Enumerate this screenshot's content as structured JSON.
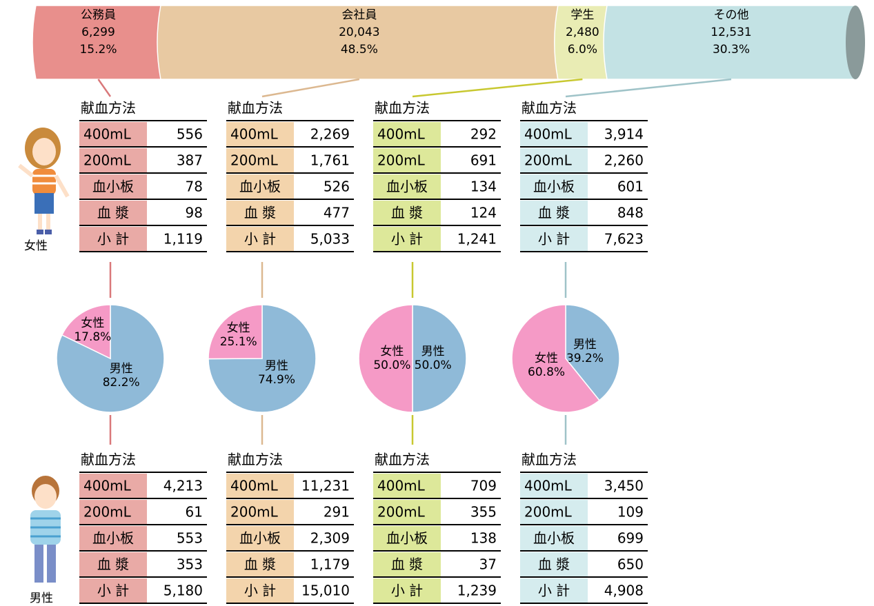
{
  "occupations": {
    "names": [
      "公務員",
      "会社員",
      "学生",
      "その他"
    ],
    "values": [
      6299,
      20043,
      2480,
      12531
    ],
    "value_labels": [
      "6,299",
      "20,043",
      "2,480",
      "12,531"
    ],
    "share_labels": [
      "15.2%",
      "48.5%",
      "6.0%",
      "30.3%"
    ],
    "colors": [
      "#e88f8c",
      "#e8c9a2",
      "#e9ecb4",
      "#c3e2e4"
    ]
  },
  "female": {
    "label": "女性",
    "tables": [
      {
        "title": "献血方法",
        "rows": [
          [
            "400mL",
            "556"
          ],
          [
            "200mL",
            "387"
          ],
          [
            "血小板",
            "78"
          ],
          [
            "血 漿",
            "98"
          ],
          [
            "小 計",
            "1,119"
          ]
        ]
      },
      {
        "title": "献血方法",
        "rows": [
          [
            "400mL",
            "2,269"
          ],
          [
            "200mL",
            "1,761"
          ],
          [
            "血小板",
            "526"
          ],
          [
            "血 漿",
            "477"
          ],
          [
            "小 計",
            "5,033"
          ]
        ]
      },
      {
        "title": "献血方法",
        "rows": [
          [
            "400mL",
            "292"
          ],
          [
            "200mL",
            "691"
          ],
          [
            "血小板",
            "134"
          ],
          [
            "血 漿",
            "124"
          ],
          [
            "小 計",
            "1,241"
          ]
        ]
      },
      {
        "title": "献血方法",
        "rows": [
          [
            "400mL",
            "3,914"
          ],
          [
            "200mL",
            "2,260"
          ],
          [
            "血小板",
            "601"
          ],
          [
            "血 漿",
            "848"
          ],
          [
            "小 計",
            "7,623"
          ]
        ]
      }
    ]
  },
  "pies": [
    {
      "slices": [
        {
          "name": "男性",
          "value": 82.2,
          "label": "82.2%",
          "color": "#8fbad8"
        },
        {
          "name": "女性",
          "value": 17.8,
          "label": "17.8%",
          "color": "#f59ac6"
        }
      ]
    },
    {
      "slices": [
        {
          "name": "男性",
          "value": 74.9,
          "label": "74.9%",
          "color": "#8fbad8"
        },
        {
          "name": "女性",
          "value": 25.1,
          "label": "25.1%",
          "color": "#f59ac6"
        }
      ]
    },
    {
      "slices": [
        {
          "name": "男性",
          "value": 50.0,
          "label": "50.0%",
          "color": "#8fbad8"
        },
        {
          "name": "女性",
          "value": 50.0,
          "label": "50.0%",
          "color": "#f59ac6"
        }
      ]
    },
    {
      "slices": [
        {
          "name": "男性",
          "value": 39.2,
          "label": "39.2%",
          "color": "#8fbad8"
        },
        {
          "name": "女性",
          "value": 60.8,
          "label": "60.8%",
          "color": "#f59ac6"
        }
      ]
    }
  ],
  "male": {
    "label": "男性",
    "tables": [
      {
        "title": "献血方法",
        "rows": [
          [
            "400mL",
            "4,213"
          ],
          [
            "200mL",
            "61"
          ],
          [
            "血小板",
            "553"
          ],
          [
            "血 漿",
            "353"
          ],
          [
            "小 計",
            "5,180"
          ]
        ]
      },
      {
        "title": "献血方法",
        "rows": [
          [
            "400mL",
            "11,231"
          ],
          [
            "200mL",
            "291"
          ],
          [
            "血小板",
            "2,309"
          ],
          [
            "血 漿",
            "1,179"
          ],
          [
            "小 計",
            "15,010"
          ]
        ]
      },
      {
        "title": "献血方法",
        "rows": [
          [
            "400mL",
            "709"
          ],
          [
            "200mL",
            "355"
          ],
          [
            "血小板",
            "138"
          ],
          [
            "血 漿",
            "37"
          ],
          [
            "小 計",
            "1,239"
          ]
        ]
      },
      {
        "title": "献血方法",
        "rows": [
          [
            "400mL",
            "3,450"
          ],
          [
            "200mL",
            "109"
          ],
          [
            "血小板",
            "699"
          ],
          [
            "血 漿",
            "650"
          ],
          [
            "小 計",
            "4,908"
          ]
        ]
      }
    ]
  }
}
